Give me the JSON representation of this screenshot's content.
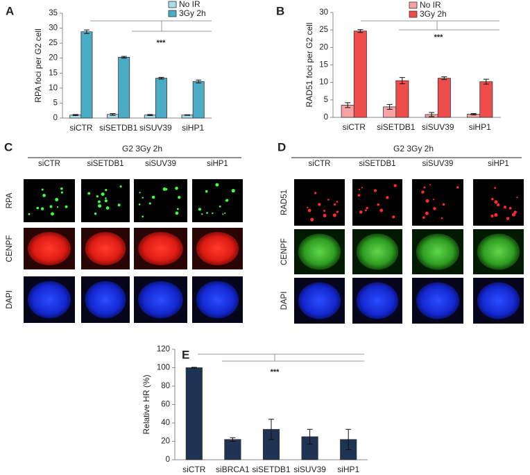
{
  "chart_data": [
    {
      "type": "bar",
      "panel_label": "A",
      "y_label": "RPA foci per G2 cell",
      "categories": [
        "siCTR",
        "siSETDB1",
        "siSUV39",
        "siHP1"
      ],
      "series": [
        {
          "name": "No IR",
          "color": "#a9dde9",
          "values": [
            1,
            1.2,
            1,
            1
          ],
          "errors": [
            0.2,
            0.3,
            0.2,
            0.1
          ]
        },
        {
          "name": "3Gy 2h",
          "color": "#4bacc6",
          "values": [
            28.8,
            20.3,
            13.3,
            12.2
          ],
          "errors": [
            0.6,
            0.3,
            0.3,
            0.5
          ]
        }
      ],
      "ylim": [
        0,
        35
      ],
      "yticks": [
        0,
        5,
        10,
        15,
        20,
        25,
        30,
        35
      ],
      "annotation": "***"
    },
    {
      "type": "bar",
      "panel_label": "B",
      "y_label": "RAD51 foci per G2 cell",
      "categories": [
        "siCTR",
        "siSETDB1",
        "siSUV39",
        "siHP1"
      ],
      "series": [
        {
          "name": "No IR",
          "color": "#f7a3a3",
          "values": [
            3.5,
            3.0,
            0.8,
            0.9
          ],
          "errors": [
            0.7,
            0.7,
            0.6,
            0.2
          ]
        },
        {
          "name": "3Gy 2h",
          "color": "#ef4c4c",
          "values": [
            24.7,
            10.5,
            11.2,
            10.2
          ],
          "errors": [
            0.4,
            0.9,
            0.4,
            0.7
          ]
        }
      ],
      "ylim": [
        0,
        30
      ],
      "yticks": [
        0,
        5,
        10,
        15,
        20,
        25,
        30
      ],
      "annotation": "***"
    },
    {
      "type": "bar",
      "panel_label": "E",
      "y_label": "Relative HR (%)",
      "categories": [
        "siCTR",
        "siBRCA1",
        "siSETDB1",
        "siSUV39",
        "siHP1"
      ],
      "series": [
        {
          "color": "#1f3352",
          "values": [
            100,
            22,
            33,
            25,
            22
          ],
          "errors": [
            0.5,
            2,
            11,
            8,
            11
          ]
        }
      ],
      "ylim": [
        0,
        120
      ],
      "yticks": [
        0,
        20,
        40,
        60,
        80,
        100,
        120
      ],
      "annotation": "***"
    }
  ],
  "panels": [
    {
      "label": "C",
      "title": "G2 3Gy 2h",
      "columns": [
        "siCTR",
        "siSETDB1",
        "siSUV39",
        "siHP1"
      ],
      "rows": [
        "RPA",
        "CENPF",
        "DAPI"
      ]
    },
    {
      "label": "D",
      "title": "G2 3Gy 2h",
      "columns": [
        "siCTR",
        "siSETDB1",
        "siSUV39",
        "siHP1"
      ],
      "rows": [
        "RAD51",
        "CENPF",
        "DAPI"
      ]
    }
  ]
}
